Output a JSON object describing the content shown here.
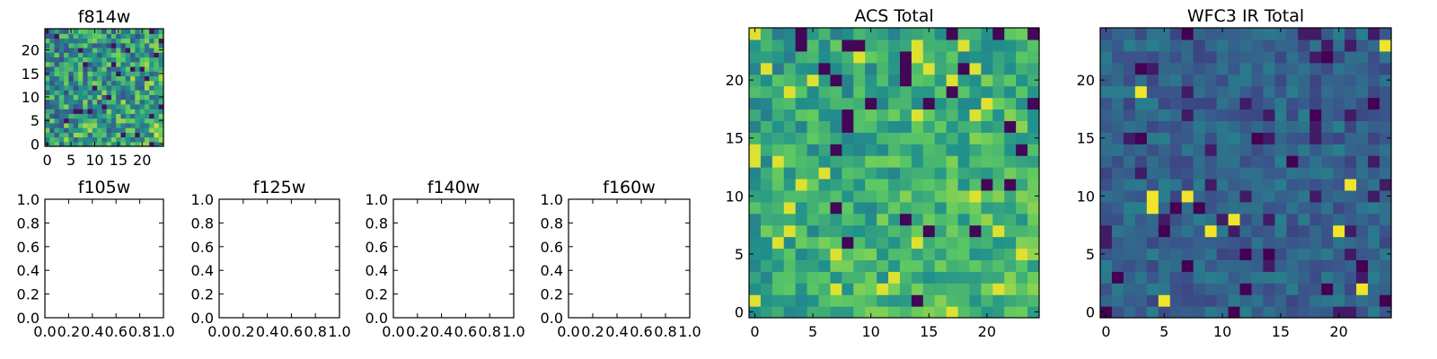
{
  "colormap": [
    "#440154",
    "#3b528b",
    "#21918c",
    "#5ec962",
    "#fde725"
  ],
  "chart_data": [
    {
      "type": "heatmap",
      "title": "f814w",
      "grid_size": [
        25,
        25
      ],
      "xlim": [
        -0.5,
        24.5
      ],
      "ylim": [
        -0.5,
        24.5
      ],
      "xticks": [
        0,
        5,
        10,
        15,
        20
      ],
      "yticks": [
        0,
        5,
        10,
        15,
        20
      ],
      "seed": 11,
      "values": []
    },
    {
      "type": "heatmap",
      "title": "f105w",
      "xlim": [
        0,
        1
      ],
      "ylim": [
        0,
        1
      ],
      "xticks": [
        0.0,
        0.2,
        0.4,
        0.6,
        0.8,
        1.0
      ],
      "yticks": [
        0.0,
        0.2,
        0.4,
        0.6,
        0.8,
        1.0
      ],
      "values": []
    },
    {
      "type": "heatmap",
      "title": "f125w",
      "xlim": [
        0,
        1
      ],
      "ylim": [
        0,
        1
      ],
      "xticks": [
        0.0,
        0.2,
        0.4,
        0.6,
        0.8,
        1.0
      ],
      "yticks": [
        0.0,
        0.2,
        0.4,
        0.6,
        0.8,
        1.0
      ],
      "values": []
    },
    {
      "type": "heatmap",
      "title": "f140w",
      "xlim": [
        0,
        1
      ],
      "ylim": [
        0,
        1
      ],
      "xticks": [
        0.0,
        0.2,
        0.4,
        0.6,
        0.8,
        1.0
      ],
      "yticks": [
        0.0,
        0.2,
        0.4,
        0.6,
        0.8,
        1.0
      ],
      "values": []
    },
    {
      "type": "heatmap",
      "title": "f160w",
      "xlim": [
        0,
        1
      ],
      "ylim": [
        0,
        1
      ],
      "xticks": [
        0.0,
        0.2,
        0.4,
        0.6,
        0.8,
        1.0
      ],
      "yticks": [
        0.0,
        0.2,
        0.4,
        0.6,
        0.8,
        1.0
      ],
      "values": []
    },
    {
      "type": "heatmap",
      "title": "ACS Total",
      "grid_size": [
        25,
        25
      ],
      "xlim": [
        -0.5,
        24.5
      ],
      "ylim": [
        -0.5,
        24.5
      ],
      "xticks": [
        0,
        5,
        10,
        15,
        20
      ],
      "yticks": [
        0,
        5,
        10,
        15,
        20
      ],
      "seed": 23,
      "values": []
    },
    {
      "type": "heatmap",
      "title": "WFC3 IR Total",
      "grid_size": [
        25,
        25
      ],
      "xlim": [
        -0.5,
        24.5
      ],
      "ylim": [
        -0.5,
        24.5
      ],
      "xticks": [
        0,
        5,
        10,
        15,
        20
      ],
      "yticks": [
        0,
        5,
        10,
        15,
        20
      ],
      "seed": 37,
      "values": []
    }
  ]
}
